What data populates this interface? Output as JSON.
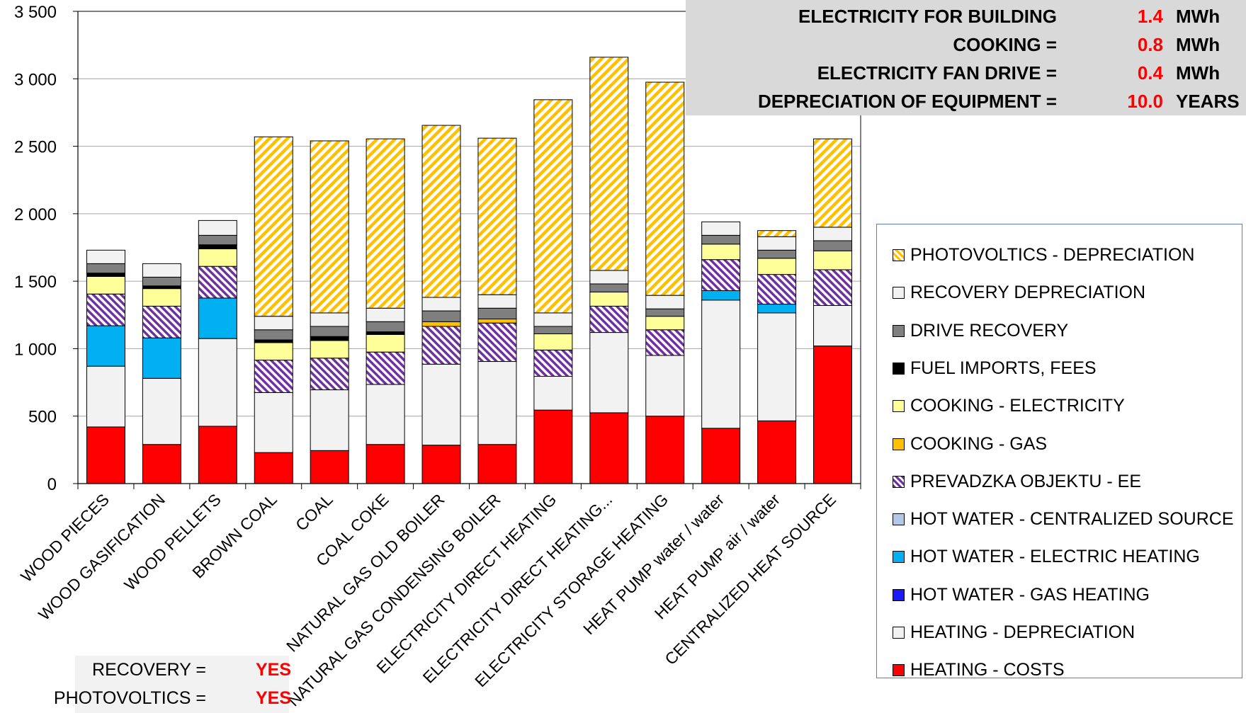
{
  "info_panel": {
    "rows": [
      {
        "label": "ELECTRICITY FOR BUILDING",
        "value": "1.4",
        "unit": "MWh"
      },
      {
        "label": "COOKING =",
        "value": "0.8",
        "unit": "MWh"
      },
      {
        "label": "ELECTRICITY FAN DRIVE =",
        "value": "0.4",
        "unit": "MWh"
      },
      {
        "label": "DEPRECIATION OF EQUIPMENT =",
        "value": "10.0",
        "unit": "YEARS"
      }
    ]
  },
  "bottom_panel": {
    "rows": [
      {
        "label": "RECOVERY =",
        "value": "YES"
      },
      {
        "label": "PHOTOVOLTICS =",
        "value": "YES"
      }
    ]
  },
  "chart_data": {
    "type": "bar",
    "stacked": true,
    "title": "",
    "xlabel": "",
    "ylabel": "",
    "ylim": [
      0,
      3500
    ],
    "yticks": [
      0,
      500,
      1000,
      1500,
      2000,
      2500,
      3000,
      3500
    ],
    "ytick_labels": [
      "0",
      "500",
      "1 000",
      "1 500",
      "2 000",
      "2 500",
      "3 000",
      "3 500"
    ],
    "grid": true,
    "legend_position": "right",
    "categories": [
      "WOOD PIECES",
      "WOOD GASIFICATION",
      "WOOD PELLETS",
      "BROWN COAL",
      "COAL",
      "COAL COKE",
      "NATURAL GAS OLD BOILER",
      "NATURAL GAS CONDENSING BOILER",
      "ELECTRICITY DIRECT HEATING",
      "ELECTRICITY DIRECT HEATING...",
      "ELECTRICITY STORAGE HEATING",
      "HEAT PUMP water / water",
      "HEAT PUMP air / water",
      "CENTRALIZED HEAT SOURCE"
    ],
    "series": [
      {
        "name": "HEATING - COSTS",
        "color": "#ff0000",
        "pattern": "solid",
        "values": [
          420,
          290,
          425,
          230,
          245,
          290,
          285,
          290,
          545,
          525,
          500,
          410,
          465,
          1020
        ]
      },
      {
        "name": "HEATING - DEPRECIATION",
        "color": "#f2f2f2",
        "pattern": "solid",
        "values": [
          450,
          490,
          650,
          445,
          450,
          445,
          600,
          615,
          250,
          595,
          450,
          950,
          800,
          300
        ]
      },
      {
        "name": "HOT WATER - GAS HEATING",
        "color": "#1a1aff",
        "pattern": "solid",
        "values": [
          0,
          0,
          0,
          0,
          0,
          0,
          0,
          0,
          0,
          0,
          0,
          0,
          0,
          0
        ]
      },
      {
        "name": "HOT WATER - ELECTRIC HEATING",
        "color": "#00b0f0",
        "pattern": "solid",
        "values": [
          300,
          300,
          300,
          0,
          0,
          0,
          0,
          0,
          0,
          0,
          0,
          70,
          65,
          0
        ]
      },
      {
        "name": "HOT WATER - CENTRALIZED SOURCE",
        "color": "#b4c7e7",
        "pattern": "solid",
        "values": [
          0,
          0,
          0,
          0,
          0,
          0,
          0,
          0,
          0,
          0,
          0,
          0,
          0,
          0
        ]
      },
      {
        "name": "PREVADZKA OBJEKTU - EE",
        "color": "#7030a0",
        "pattern": "diagonal",
        "values": [
          235,
          235,
          235,
          240,
          235,
          240,
          280,
          285,
          195,
          195,
          190,
          230,
          220,
          265
        ]
      },
      {
        "name": "COOKING - GAS",
        "color": "#ffc000",
        "pattern": "solid",
        "values": [
          0,
          0,
          0,
          0,
          0,
          0,
          35,
          30,
          0,
          0,
          0,
          0,
          0,
          0
        ]
      },
      {
        "name": "COOKING - ELECTRICITY",
        "color": "#ffff99",
        "pattern": "solid",
        "values": [
          130,
          130,
          130,
          130,
          130,
          130,
          0,
          0,
          120,
          105,
          100,
          115,
          120,
          140
        ]
      },
      {
        "name": "FUEL IMPORTS, FEES",
        "color": "#000000",
        "pattern": "solid",
        "values": [
          25,
          20,
          30,
          20,
          30,
          20,
          0,
          0,
          0,
          0,
          0,
          0,
          0,
          0
        ]
      },
      {
        "name": "DRIVE RECOVERY",
        "color": "#7f7f7f",
        "pattern": "solid",
        "values": [
          70,
          65,
          70,
          75,
          75,
          75,
          80,
          80,
          55,
          60,
          55,
          65,
          60,
          75
        ]
      },
      {
        "name": "RECOVERY DEPRECIATION",
        "color": "#f2f2f2",
        "pattern": "solid",
        "values": [
          100,
          100,
          110,
          100,
          100,
          100,
          100,
          100,
          100,
          100,
          100,
          100,
          100,
          100
        ]
      },
      {
        "name": "PHOTOVOLTICS - DEPRECIATION",
        "color": "#ffc000",
        "pattern": "diagonal",
        "values": [
          0,
          0,
          0,
          1330,
          1275,
          1255,
          1275,
          1160,
          1580,
          1580,
          1580,
          0,
          45,
          655
        ]
      }
    ]
  }
}
